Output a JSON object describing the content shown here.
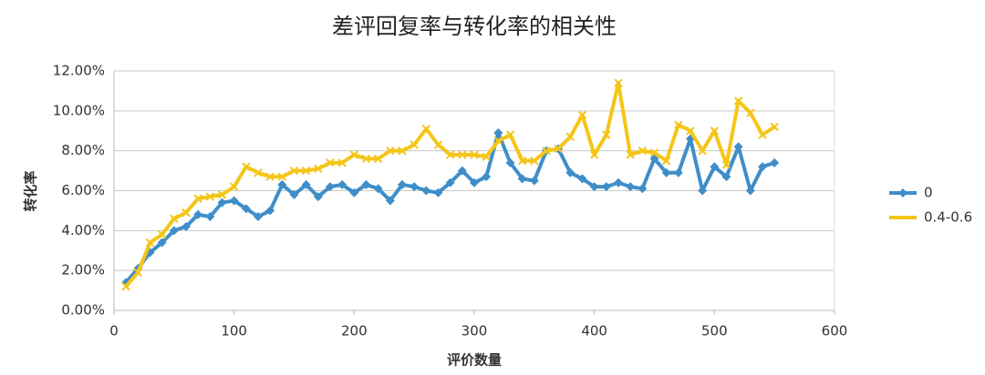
{
  "chart_data": {
    "type": "line",
    "title": "差评回复率与转化率的相关性",
    "x_label": "评价数量",
    "y_label": "转化率",
    "x": [
      10,
      20,
      30,
      40,
      50,
      60,
      70,
      80,
      90,
      100,
      110,
      120,
      130,
      140,
      150,
      160,
      170,
      180,
      190,
      200,
      210,
      220,
      230,
      240,
      250,
      260,
      270,
      280,
      290,
      300,
      310,
      320,
      330,
      340,
      350,
      360,
      370,
      380,
      390,
      400,
      410,
      420,
      430,
      440,
      450,
      460,
      470,
      480,
      490,
      500,
      510,
      520,
      530,
      540,
      550
    ],
    "series": [
      {
        "name": "0",
        "color": "#3f8ec9",
        "marker": "diamond",
        "values": [
          1.4,
          2.1,
          2.9,
          3.4,
          4.0,
          4.2,
          4.8,
          4.7,
          5.4,
          5.5,
          5.1,
          4.7,
          5.0,
          6.3,
          5.8,
          6.3,
          5.7,
          6.2,
          6.3,
          5.9,
          6.3,
          6.1,
          5.5,
          6.3,
          6.2,
          6.0,
          5.9,
          6.4,
          7.0,
          6.4,
          6.7,
          8.9,
          7.4,
          6.6,
          6.5,
          8.0,
          8.1,
          6.9,
          6.6,
          6.2,
          6.2,
          6.4,
          6.2,
          6.1,
          7.6,
          6.9,
          6.9,
          8.6,
          6.0,
          7.2,
          6.7,
          8.2,
          6.0,
          7.2,
          7.4
        ]
      },
      {
        "name": "0.4-0.6",
        "color": "#f5c518",
        "marker": "x",
        "values": [
          1.2,
          1.9,
          3.4,
          3.8,
          4.6,
          4.9,
          5.6,
          5.7,
          5.8,
          6.2,
          7.2,
          6.9,
          6.7,
          6.7,
          7.0,
          7.0,
          7.1,
          7.4,
          7.4,
          7.8,
          7.6,
          7.6,
          8.0,
          8.0,
          8.3,
          9.1,
          8.3,
          7.8,
          7.8,
          7.8,
          7.7,
          8.5,
          8.8,
          7.5,
          7.5,
          8.0,
          8.1,
          8.7,
          9.8,
          7.8,
          8.8,
          11.4,
          7.8,
          8.0,
          7.9,
          7.5,
          9.3,
          9.0,
          8.0,
          9.0,
          7.3,
          10.5,
          9.9,
          8.8,
          9.2
        ]
      }
    ],
    "xlim": [
      0,
      600
    ],
    "xticks": [
      0,
      100,
      200,
      300,
      400,
      500,
      600
    ],
    "ylim": [
      0,
      12
    ],
    "yticks": [
      {
        "value": 0,
        "label": "0.00%"
      },
      {
        "value": 2,
        "label": "2.00%"
      },
      {
        "value": 4,
        "label": "4.00%"
      },
      {
        "value": 6,
        "label": "6.00%"
      },
      {
        "value": 8,
        "label": "8.00%"
      },
      {
        "value": 10,
        "label": "10.00%"
      },
      {
        "value": 12,
        "label": "12.00%"
      }
    ],
    "grid": true,
    "legend": "right"
  }
}
